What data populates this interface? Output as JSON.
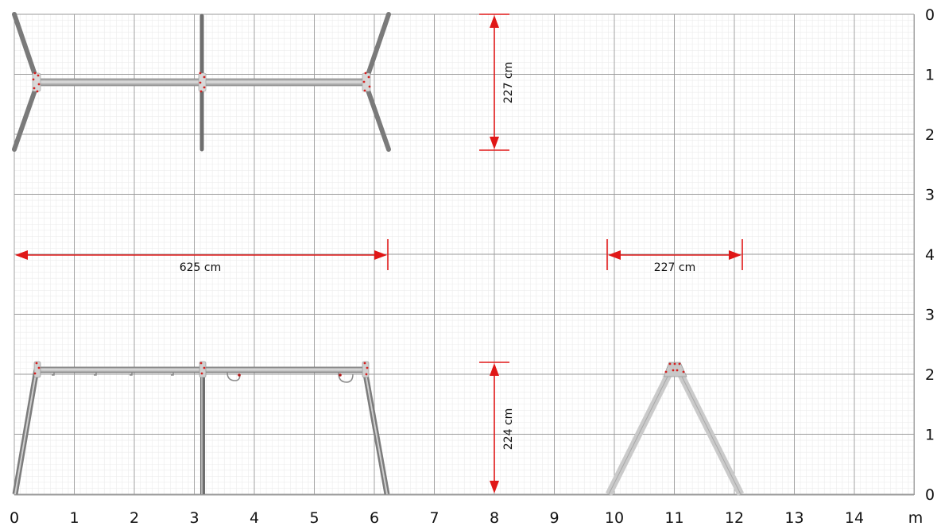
{
  "x_axis": {
    "ticks": [
      "0",
      "1",
      "2",
      "3",
      "4",
      "5",
      "6",
      "7",
      "8",
      "9",
      "10",
      "11",
      "12",
      "13",
      "14"
    ],
    "unit": "m"
  },
  "y_axis": {
    "ticks_top": [
      "0",
      "1",
      "2",
      "3",
      "4"
    ],
    "ticks_bottom": [
      "3",
      "2",
      "1",
      "0"
    ]
  },
  "dimensions": {
    "top_view_depth": "227 cm",
    "overall_length": "625 cm",
    "side_view_depth": "227 cm",
    "height": "224 cm"
  },
  "colors": {
    "grid_minor": "#ececec",
    "grid_major": "#9a9a9a",
    "dimension": "#e01818",
    "frame": "#9a9a9a",
    "frame_light": "#c4c4c4"
  }
}
